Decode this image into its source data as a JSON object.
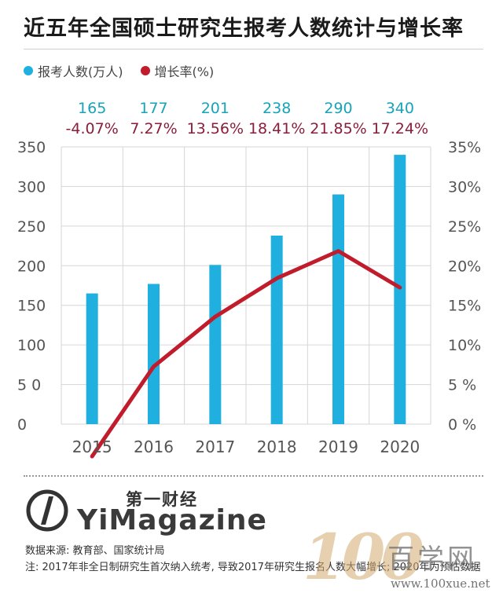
{
  "title": "近五年全国硕士研究生报考人数统计与增长率",
  "legend": {
    "items": [
      {
        "label": "报考人数(万人)",
        "color": "#1fb0e0"
      },
      {
        "label": "增长率(%)",
        "color": "#c01c2c"
      }
    ]
  },
  "chart_data": {
    "type": "bar",
    "categories": [
      "2015",
      "2016",
      "2017",
      "2018",
      "2019",
      "2020"
    ],
    "series": [
      {
        "name": "报考人数(万人)",
        "type": "bar",
        "axis": "left",
        "color": "#1fb0e0",
        "values": [
          165,
          177,
          201,
          238,
          290,
          340
        ],
        "labels": [
          "165",
          "177",
          "201",
          "238",
          "290",
          "340"
        ]
      },
      {
        "name": "增长率(%)",
        "type": "line",
        "axis": "right",
        "color": "#c01c2c",
        "values": [
          -4.07,
          7.27,
          13.56,
          18.41,
          21.85,
          17.24
        ],
        "labels": [
          "-4.07%",
          "7.27%",
          "13.56%",
          "18.41%",
          "21.85%",
          "17.24%"
        ]
      }
    ],
    "y_left": {
      "min": 0,
      "max": 350,
      "ticks": [
        0,
        50,
        100,
        150,
        200,
        250,
        300,
        350
      ],
      "tick_labels": [
        "0",
        "5 0",
        "100",
        "150",
        "200",
        "250",
        "300",
        "350"
      ]
    },
    "y_right": {
      "min": 0,
      "max": 35,
      "ticks": [
        0,
        5,
        10,
        15,
        20,
        25,
        30,
        35
      ],
      "tick_labels": [
        "0 %",
        "5 %",
        "10%",
        "15%",
        "20%",
        "25%",
        "30%",
        "35%"
      ]
    },
    "grid": true
  },
  "brand": {
    "cn": "第一财经",
    "en": "YiMagazine",
    "mark": "1"
  },
  "source": "数据来源: 教育部、国家统计局",
  "note": "注: 2017年非全日制研究生首次纳入统考, 导致2017年研究生报名人数大幅增长; 2020年为预估数据",
  "watermark": {
    "digits": "100",
    "cn": "百学网",
    "url": "www.100xue.net"
  }
}
